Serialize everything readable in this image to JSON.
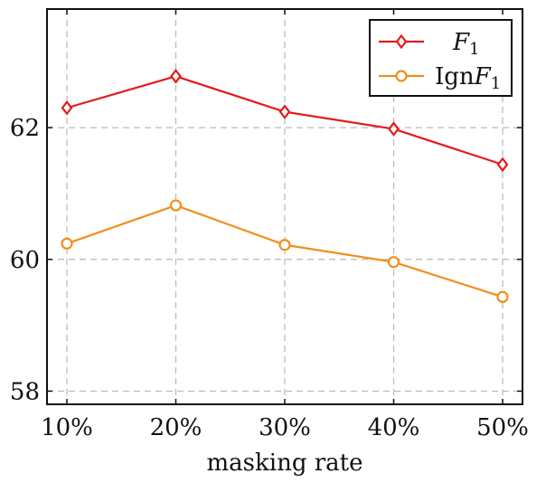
{
  "chart_data": {
    "type": "line",
    "title": "",
    "xlabel": "masking rate",
    "ylabel": "",
    "categories": [
      "10%",
      "20%",
      "30%",
      "40%",
      "50%"
    ],
    "ylim": [
      57.8,
      63.8
    ],
    "yticks": [
      58,
      60,
      62
    ],
    "grid": true,
    "legend_position": "top-right",
    "series": [
      {
        "name": "F1",
        "legend_main": "F",
        "legend_sub": "1",
        "color": "#e31a1c",
        "marker": "diamond",
        "values": [
          62.3,
          62.78,
          62.24,
          61.98,
          61.44
        ]
      },
      {
        "name": "IgnF1",
        "legend_prefix": "Ign",
        "legend_main": "F",
        "legend_sub": "1",
        "color": "#f28e1c",
        "marker": "circle",
        "values": [
          60.24,
          60.82,
          60.22,
          59.96,
          59.43
        ]
      }
    ]
  }
}
